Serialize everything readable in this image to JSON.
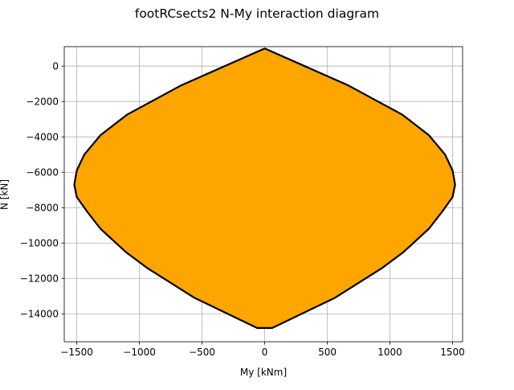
{
  "colors": {
    "fill": "#ffa500",
    "outline": "#000000",
    "grid": "#b0b0b0"
  },
  "chart_data": {
    "type": "area",
    "title": "footRCsects2 N-My interaction diagram",
    "xlabel": "My [kNm]",
    "ylabel": "N [kN]",
    "xlim": [
      -1600,
      1580
    ],
    "ylim": [
      -15580,
      1100
    ],
    "grid": true,
    "x_ticks": [
      -1500,
      -1000,
      -500,
      0,
      500,
      1000,
      1500
    ],
    "y_ticks": [
      0,
      -2000,
      -4000,
      -6000,
      -8000,
      -10000,
      -12000,
      -14000
    ],
    "boundary": {
      "x": [
        0,
        670,
        1100,
        1310,
        1440,
        1500,
        1520,
        1500,
        1420,
        1310,
        1110,
        940,
        560,
        60,
        -60,
        -560,
        -940,
        -1110,
        -1310,
        -1420,
        -1500,
        -1520,
        -1500,
        -1440,
        -1310,
        -1100,
        -670,
        0
      ],
      "y": [
        1000,
        -1100,
        -2750,
        -3900,
        -5000,
        -5900,
        -6700,
        -7400,
        -8200,
        -9200,
        -10500,
        -11400,
        -13100,
        -14800,
        -14800,
        -13100,
        -11400,
        -10500,
        -9200,
        -8200,
        -7400,
        -6700,
        -5900,
        -5000,
        -3900,
        -2750,
        -1100,
        1000
      ]
    }
  }
}
